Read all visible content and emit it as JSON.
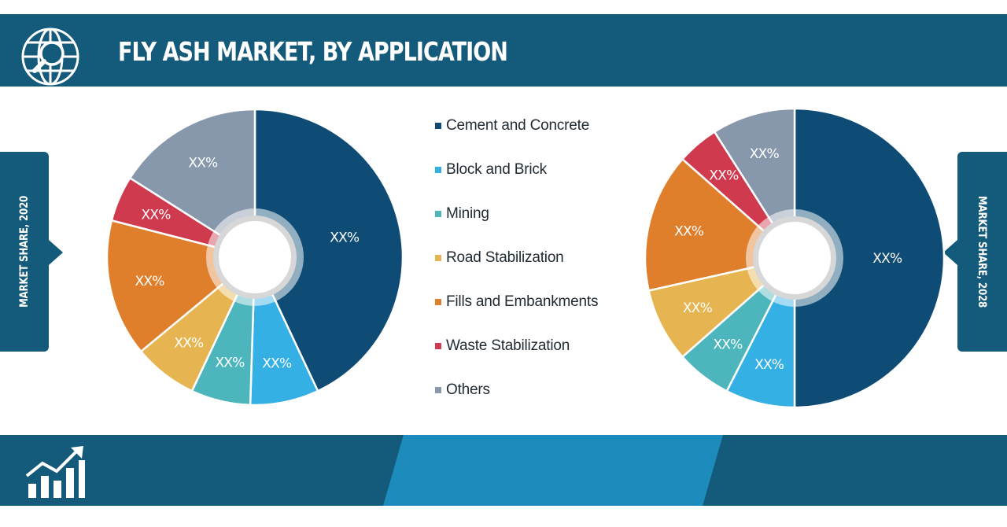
{
  "header": {
    "title": "FLY ASH MARKET, BY APPLICATION",
    "icon": "globe-search-icon"
  },
  "left_tab": {
    "label": "MARKET SHARE, 2020"
  },
  "right_tab": {
    "label": "MARKET SHARE, 2028"
  },
  "footer": {
    "icon": "growth-chart-icon"
  },
  "colors": {
    "brand": "#145a7a",
    "accent": "#1d8cbd",
    "ring": "#d7d7d7"
  },
  "chart_data": [
    {
      "type": "pie",
      "title": "",
      "year_label": "MARKET SHARE, 2020",
      "categories": [
        "Cement and Concrete",
        "Block and Brick",
        "Mining",
        "Road Stabilization",
        "Fills and Embankments",
        "Waste Stabilization",
        "Others"
      ],
      "values": [
        43,
        7.5,
        6.5,
        7,
        15,
        5,
        16
      ],
      "labels": [
        "XX%",
        "XX%",
        "XX%",
        "XX%",
        "XX%",
        "XX%",
        "XX%"
      ],
      "colors": [
        "#0f4c75",
        "#34b0e4",
        "#4db6bc",
        "#e6b551",
        "#e07f2b",
        "#cf3a4e",
        "#8797ac"
      ],
      "legend": "center"
    },
    {
      "type": "pie",
      "title": "",
      "year_label": "MARKET SHARE, 2028",
      "categories": [
        "Cement and Concrete",
        "Block and Brick",
        "Mining",
        "Road Stabilization",
        "Fills and Embankments",
        "Waste Stabilization",
        "Others"
      ],
      "values": [
        50,
        7.5,
        6,
        8,
        15,
        4.5,
        9
      ],
      "labels": [
        "XX%",
        "XX%",
        "XX%",
        "XX%",
        "XX%",
        "XX%",
        "XX%"
      ],
      "colors": [
        "#0f4c75",
        "#34b0e4",
        "#4db6bc",
        "#e6b551",
        "#e07f2b",
        "#cf3a4e",
        "#8797ac"
      ],
      "legend": "center"
    }
  ],
  "legend": [
    {
      "label": "Cement and Concrete",
      "color": "#0f4c75"
    },
    {
      "label": "Block and Brick",
      "color": "#34b0e4"
    },
    {
      "label": "Mining",
      "color": "#4db6bc"
    },
    {
      "label": "Road Stabilization",
      "color": "#e6b551"
    },
    {
      "label": "Fills and Embankments",
      "color": "#e07f2b"
    },
    {
      "label": "Waste Stabilization",
      "color": "#cf3a4e"
    },
    {
      "label": "Others",
      "color": "#8797ac"
    }
  ]
}
